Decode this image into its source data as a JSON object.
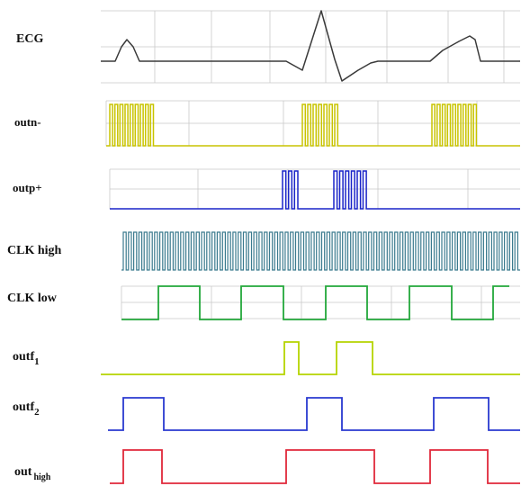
{
  "diagram": {
    "colors": {
      "grid": "#c9c9c9",
      "ecg": "#3a3a3a",
      "outn": "#c8c400",
      "outp": "#1a24c8",
      "clk_high": "#3a7a8e",
      "clk_low": "#22a83a",
      "outf1": "#b5d400",
      "outf2": "#2a3ad0",
      "out_high": "#e0283a"
    },
    "signals": [
      {
        "id": "ecg",
        "label": "ECG",
        "sub": "",
        "color_key": "ecg"
      },
      {
        "id": "outn",
        "label": "outn-",
        "sub": "",
        "color_key": "outn"
      },
      {
        "id": "outp",
        "label": "outp+",
        "sub": "",
        "color_key": "outp"
      },
      {
        "id": "clk-high",
        "label": "CLK high",
        "sub": "",
        "color_key": "clk_high"
      },
      {
        "id": "clk-low",
        "label": "CLK low",
        "sub": "",
        "color_key": "clk_low"
      },
      {
        "id": "outf1",
        "label": "outf",
        "sub": "1",
        "color_key": "outf1"
      },
      {
        "id": "outf2",
        "label": "outf",
        "sub": "2",
        "color_key": "outf2"
      },
      {
        "id": "out-high",
        "label": "out",
        "sub": "high",
        "color_key": "out_high"
      }
    ]
  }
}
